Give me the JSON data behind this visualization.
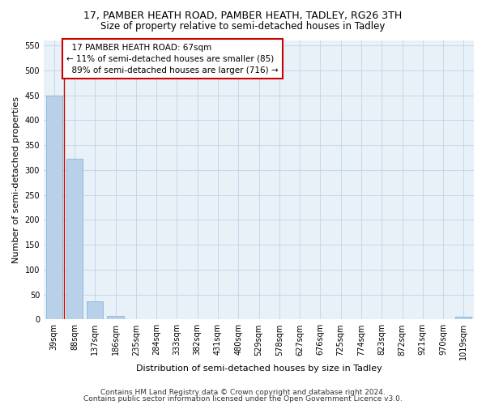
{
  "title": "17, PAMBER HEATH ROAD, PAMBER HEATH, TADLEY, RG26 3TH",
  "subtitle": "Size of property relative to semi-detached houses in Tadley",
  "xlabel": "Distribution of semi-detached houses by size in Tadley",
  "ylabel": "Number of semi-detached properties",
  "categories": [
    "39sqm",
    "88sqm",
    "137sqm",
    "186sqm",
    "235sqm",
    "284sqm",
    "333sqm",
    "382sqm",
    "431sqm",
    "480sqm",
    "529sqm",
    "578sqm",
    "627sqm",
    "676sqm",
    "725sqm",
    "774sqm",
    "823sqm",
    "872sqm",
    "921sqm",
    "970sqm",
    "1019sqm"
  ],
  "values": [
    450,
    322,
    36,
    7,
    0,
    0,
    0,
    0,
    0,
    0,
    0,
    0,
    0,
    0,
    0,
    0,
    0,
    0,
    0,
    0,
    5
  ],
  "bar_color": "#b8d0e8",
  "bar_edge_color": "#7bafd4",
  "property_line_x": 0.5,
  "property_label": "17 PAMBER HEATH ROAD: 67sqm",
  "smaller_pct": 11,
  "smaller_count": 85,
  "larger_pct": 89,
  "larger_count": 716,
  "annotation_box_color": "#ffffff",
  "annotation_box_edge": "#cc0000",
  "red_line_color": "#cc0000",
  "grid_color": "#c0d4e8",
  "background_color": "#e8f0f8",
  "ylim": [
    0,
    560
  ],
  "yticks": [
    0,
    50,
    100,
    150,
    200,
    250,
    300,
    350,
    400,
    450,
    500,
    550
  ],
  "footer1": "Contains HM Land Registry data © Crown copyright and database right 2024.",
  "footer2": "Contains public sector information licensed under the Open Government Licence v3.0.",
  "title_fontsize": 9,
  "subtitle_fontsize": 8.5,
  "axis_label_fontsize": 8,
  "tick_fontsize": 7,
  "annotation_fontsize": 7.5,
  "footer_fontsize": 6.5
}
